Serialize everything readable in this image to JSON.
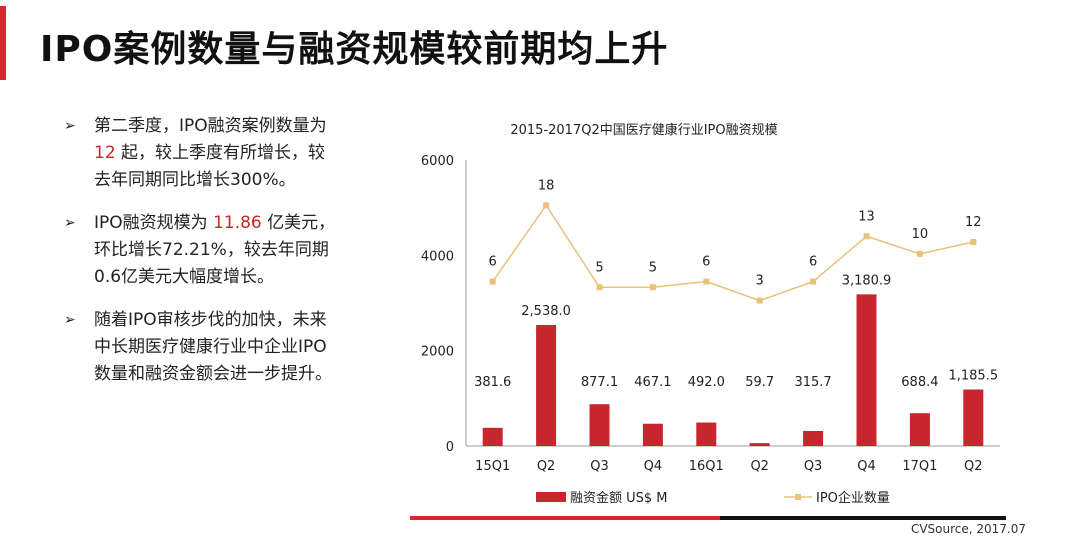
{
  "slide": {
    "title": "IPO案例数量与融资规模较前期均上升"
  },
  "bullets": [
    {
      "arrow": "➢",
      "parts": [
        "第二季度，IPO融资案例数量为 ",
        "12",
        " 起，较上季度有所增长，较去年同期同比增长300%。"
      ]
    },
    {
      "arrow": "➢",
      "parts": [
        "IPO融资规模为 ",
        "11.86",
        " 亿美元，环比增长72.21%，较去年同期0.6亿美元大幅度增长。"
      ]
    },
    {
      "arrow": "➢",
      "parts": [
        "随着IPO审核步伐的加快，未来中长期医疗健康行业中企业IPO数量和融资金额会进一步提升。"
      ]
    }
  ],
  "source": "CVSource, 2017.07",
  "colors": {
    "accent": "#d9272e",
    "bar": "#c8262e",
    "line": "#e8c27a"
  },
  "chart_data": {
    "type": "bar",
    "title": "2015-2017Q2中国医疗健康行业IPO融资规模",
    "categories": [
      "15Q1",
      "Q2",
      "Q3",
      "Q4",
      "16Q1",
      "Q2",
      "Q3",
      "Q4",
      "17Q1",
      "Q2"
    ],
    "ylim": [
      0,
      6000
    ],
    "yticks": [
      0,
      2000,
      4000,
      6000
    ],
    "series": [
      {
        "name": "融资金额 US$ M",
        "type": "bar",
        "values": [
          381.6,
          2538.0,
          877.1,
          467.1,
          492.0,
          59.7,
          315.7,
          3180.9,
          688.4,
          1185.5
        ],
        "labels": [
          "381.6",
          "2,538.0",
          "877.1",
          "467.1",
          "492.0",
          "59.7",
          "315.7",
          "3,180.9",
          "688.4",
          "1,185.5"
        ]
      },
      {
        "name": "IPO企业数量",
        "type": "line",
        "values": [
          6,
          18,
          5,
          5,
          6,
          3,
          6,
          13,
          10,
          12
        ],
        "plot_values": [
          3450,
          5050,
          3330,
          3330,
          3450,
          3050,
          3450,
          4400,
          4030,
          4280
        ],
        "labels": [
          "6",
          "18",
          "5",
          "5",
          "6",
          "3",
          "6",
          "13",
          "10",
          "12"
        ]
      }
    ],
    "legend": [
      "融资金额 US$ M",
      "IPO企业数量"
    ]
  }
}
